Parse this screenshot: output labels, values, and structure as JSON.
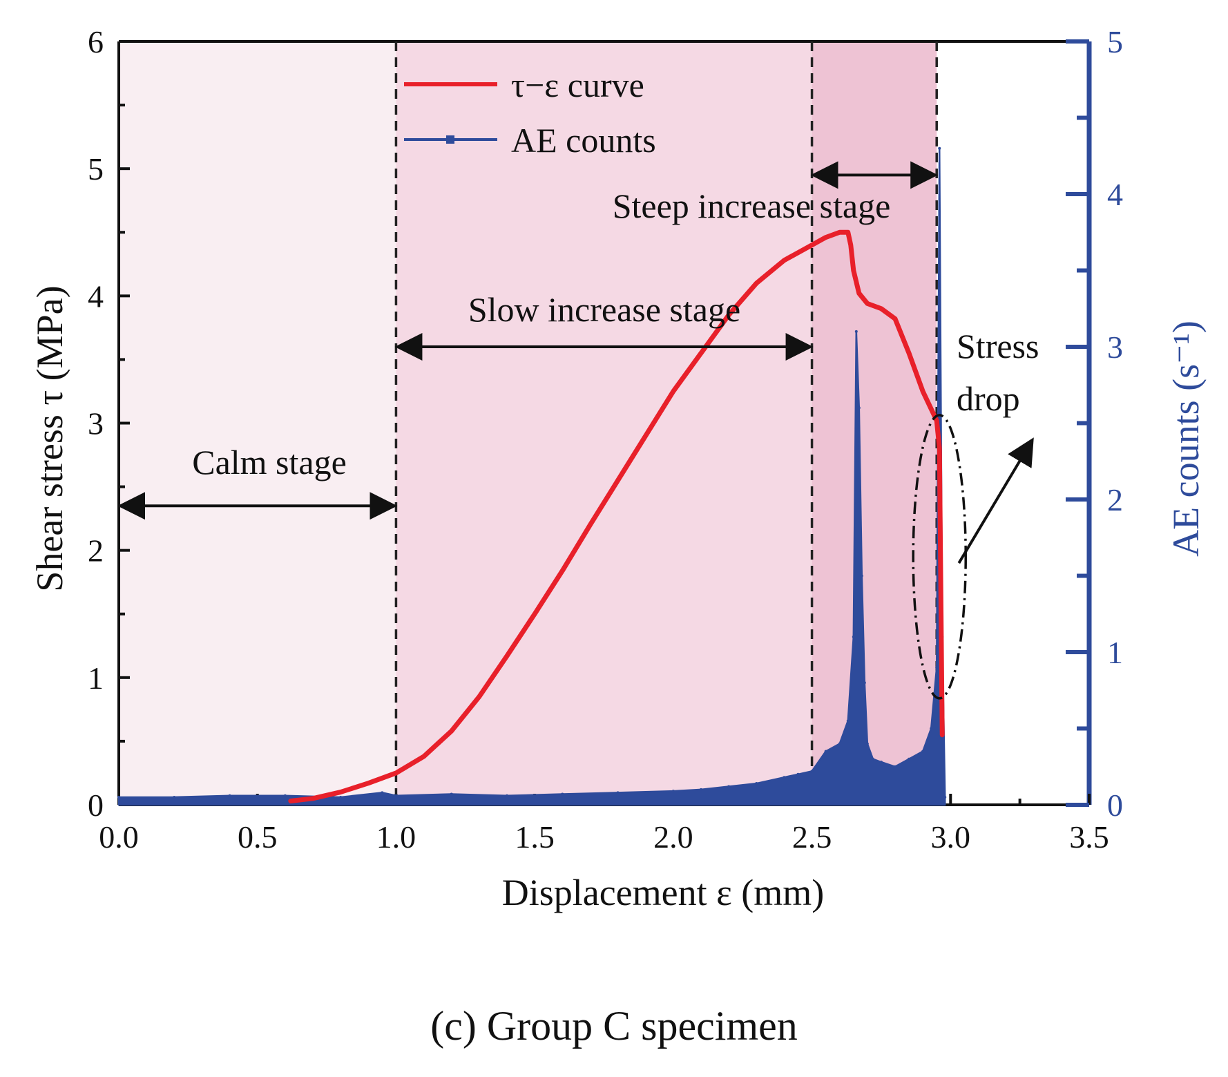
{
  "chart_data": {
    "type": "line",
    "caption": "(c) Group C specimen",
    "xlabel": "Displacement ε (mm)",
    "ylabel_left": "Shear stress τ (MPa)",
    "ylabel_right": "AE counts (s⁻¹)",
    "xlim": [
      0.0,
      3.5
    ],
    "ylim_left": [
      0,
      6
    ],
    "ylim_right": [
      0,
      5
    ],
    "x_ticks": [
      "0.0",
      "0.5",
      "1.0",
      "1.5",
      "2.0",
      "2.5",
      "3.0",
      "3.5"
    ],
    "y_left_ticks": [
      "0",
      "1",
      "2",
      "3",
      "4",
      "5",
      "6"
    ],
    "y_right_ticks": [
      "0",
      "1",
      "2",
      "3",
      "4",
      "5"
    ],
    "legend": [
      {
        "label": "τ−ε curve",
        "color": "#e8202a"
      },
      {
        "label": "AE counts",
        "color": "#2e4b9b"
      }
    ],
    "stages": [
      {
        "label": "Calm stage",
        "x_start": 0.0,
        "x_end": 1.0,
        "color": "#f9eef2"
      },
      {
        "label": "Slow increase stage",
        "x_start": 1.0,
        "x_end": 2.5,
        "color": "#f5d9e4"
      },
      {
        "label": "Steep increase stage",
        "x_start": 2.5,
        "x_end": 2.95,
        "color": "#eec3d4"
      }
    ],
    "annotations": {
      "stress_drop": [
        "Stress",
        "drop"
      ]
    },
    "series": [
      {
        "name": "τ−ε curve",
        "axis": "left",
        "color": "#e8202a",
        "x": [
          0.62,
          0.7,
          0.8,
          0.9,
          1.0,
          1.1,
          1.2,
          1.3,
          1.4,
          1.5,
          1.6,
          1.7,
          1.8,
          1.9,
          2.0,
          2.1,
          2.2,
          2.3,
          2.4,
          2.5,
          2.55,
          2.6,
          2.63,
          2.64,
          2.65,
          2.67,
          2.7,
          2.75,
          2.8,
          2.85,
          2.9,
          2.95,
          2.96,
          2.97
        ],
        "values": [
          0.03,
          0.05,
          0.1,
          0.17,
          0.25,
          0.38,
          0.58,
          0.85,
          1.17,
          1.5,
          1.84,
          2.2,
          2.55,
          2.9,
          3.25,
          3.55,
          3.85,
          4.1,
          4.28,
          4.4,
          4.46,
          4.5,
          4.5,
          4.4,
          4.2,
          4.02,
          3.94,
          3.9,
          3.82,
          3.55,
          3.25,
          3.02,
          2.8,
          0.55
        ]
      },
      {
        "name": "AE counts",
        "axis": "right",
        "color": "#2e4b9b",
        "x": [
          0.0,
          0.2,
          0.4,
          0.6,
          0.8,
          0.95,
          1.0,
          1.2,
          1.4,
          1.6,
          1.8,
          2.0,
          2.1,
          2.2,
          2.3,
          2.4,
          2.45,
          2.5,
          2.55,
          2.6,
          2.63,
          2.65,
          2.66,
          2.67,
          2.68,
          2.69,
          2.7,
          2.72,
          2.75,
          2.8,
          2.85,
          2.9,
          2.93,
          2.95,
          2.96,
          2.97,
          2.98
        ],
        "values": [
          0.05,
          0.05,
          0.06,
          0.06,
          0.05,
          0.08,
          0.06,
          0.07,
          0.06,
          0.07,
          0.08,
          0.09,
          0.1,
          0.12,
          0.14,
          0.18,
          0.2,
          0.22,
          0.35,
          0.4,
          0.55,
          1.1,
          3.1,
          2.6,
          1.5,
          0.8,
          0.4,
          0.3,
          0.28,
          0.25,
          0.3,
          0.35,
          0.5,
          0.9,
          4.3,
          1.1,
          0.05
        ]
      }
    ]
  }
}
